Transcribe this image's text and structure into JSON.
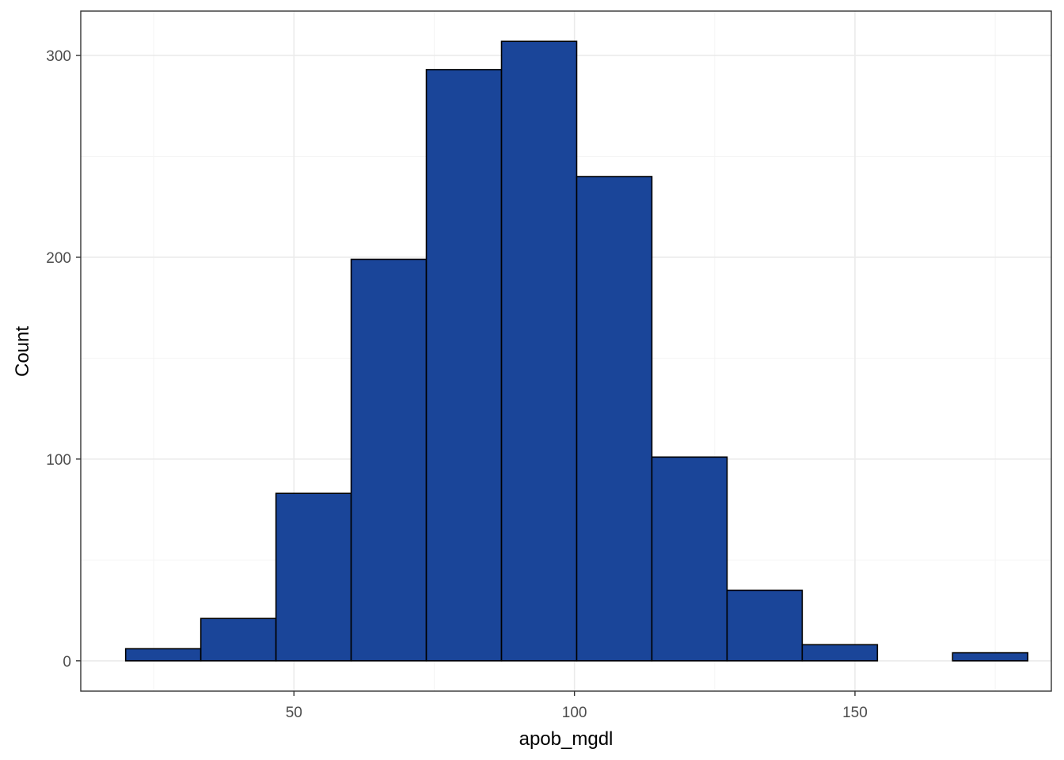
{
  "chart_data": {
    "type": "bar",
    "subtype": "histogram",
    "title": "",
    "xlabel": "apob_mgdl",
    "ylabel": "Count",
    "bin_width": 13.4,
    "bins": [
      {
        "start": 20,
        "end": 33.4,
        "count": 6
      },
      {
        "start": 33.4,
        "end": 46.8,
        "count": 21
      },
      {
        "start": 46.8,
        "end": 60.2,
        "count": 83
      },
      {
        "start": 60.2,
        "end": 73.6,
        "count": 199
      },
      {
        "start": 73.6,
        "end": 87.0,
        "count": 293
      },
      {
        "start": 87.0,
        "end": 100.4,
        "count": 307
      },
      {
        "start": 100.4,
        "end": 113.8,
        "count": 240
      },
      {
        "start": 113.8,
        "end": 127.2,
        "count": 101
      },
      {
        "start": 127.2,
        "end": 140.6,
        "count": 35
      },
      {
        "start": 140.6,
        "end": 154.0,
        "count": 8
      },
      {
        "start": 154.0,
        "end": 167.4,
        "count": 0
      },
      {
        "start": 167.4,
        "end": 180.8,
        "count": 4
      }
    ],
    "xlim": [
      12,
      185
    ],
    "ylim": [
      -15,
      322
    ],
    "x_major_ticks": [
      50,
      100,
      150
    ],
    "x_minor_ticks": [
      25,
      75,
      125,
      175
    ],
    "y_major_ticks": [
      0,
      100,
      200,
      300
    ],
    "y_minor_ticks": [
      50,
      150,
      250
    ],
    "x_tick_labels": [
      "50",
      "100",
      "150"
    ],
    "y_tick_labels": [
      "0",
      "100",
      "200",
      "300"
    ],
    "grid": true,
    "legend": "none",
    "colors": {
      "bar_fill": "#1a4599",
      "bar_outline": "#000000",
      "grid_major": "#ebebeb",
      "grid_minor": "#f4f4f4",
      "panel_border": "#333333",
      "tick_text": "#4d4d4d"
    }
  }
}
